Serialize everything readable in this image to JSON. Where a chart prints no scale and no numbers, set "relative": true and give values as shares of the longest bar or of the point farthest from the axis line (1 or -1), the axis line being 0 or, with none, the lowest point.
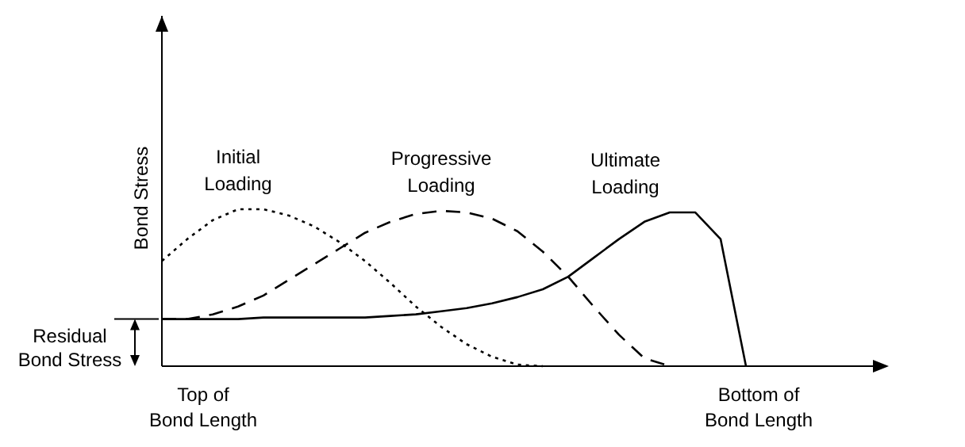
{
  "chart_data": {
    "type": "line",
    "relative": true,
    "ylabel": "Bond Stress",
    "legend": false,
    "categories": [
      null,
      null,
      null,
      null,
      null,
      null,
      null,
      null,
      null,
      null,
      null,
      null,
      null,
      null,
      null,
      null,
      null,
      null,
      null,
      null,
      null,
      null,
      null,
      null,
      null,
      null,
      null,
      null,
      null
    ],
    "series": [
      {
        "name": "Initial Loading",
        "color": "#000000",
        "line_style": "dotted",
        "values": [
          0.67,
          0.81,
          0.93,
          1,
          1,
          0.96,
          0.89,
          0.79,
          0.67,
          0.53,
          0.38,
          0.25,
          0.14,
          0.06,
          0.01,
          0,
          null,
          null,
          null,
          null,
          null,
          null,
          null,
          null,
          null,
          null,
          null,
          null,
          null
        ]
      },
      {
        "name": "Progressive Loading",
        "color": "#000000",
        "line_style": "dashed",
        "values": [
          0.3,
          0.3,
          0.33,
          0.38,
          0.45,
          0.55,
          0.65,
          0.75,
          0.85,
          0.92,
          0.97,
          0.99,
          0.98,
          0.94,
          0.86,
          0.73,
          0.57,
          0.38,
          0.2,
          0.05,
          0,
          null,
          null,
          null,
          null,
          null,
          null,
          null,
          null
        ]
      },
      {
        "name": "Ultimate Loading",
        "color": "#000000",
        "line_style": "solid",
        "values": [
          0.3,
          0.3,
          0.3,
          0.3,
          0.31,
          0.31,
          0.31,
          0.31,
          0.31,
          0.32,
          0.33,
          0.35,
          0.37,
          0.4,
          0.44,
          0.49,
          0.57,
          0.69,
          0.81,
          0.92,
          0.98,
          0.98,
          0.81,
          0,
          null,
          null,
          null,
          null,
          null
        ]
      }
    ],
    "annotations": [
      "Residual Bond Stress",
      "Top of Bond Length",
      "Bottom of Bond Length"
    ]
  }
}
